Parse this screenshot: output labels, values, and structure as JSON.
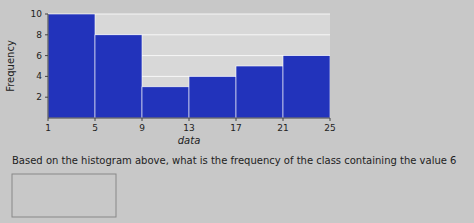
{
  "chart_data": {
    "type": "histogram",
    "bins": [
      1,
      5,
      9,
      13,
      17,
      21,
      25
    ],
    "values": [
      10,
      8,
      3,
      4,
      5,
      6
    ],
    "color": "#2233bb",
    "xlabel": "data",
    "ylabel": "Frequency",
    "xlim": [
      1,
      25
    ],
    "ylim": [
      0,
      10
    ],
    "xticks": [
      1,
      5,
      9,
      13,
      17,
      21,
      25
    ],
    "yticks": [
      2,
      4,
      6,
      8,
      10
    ],
    "grid": true,
    "annotations": [
      "Based on the histogram above, what is the frequency of the class containing the value 6"
    ]
  }
}
